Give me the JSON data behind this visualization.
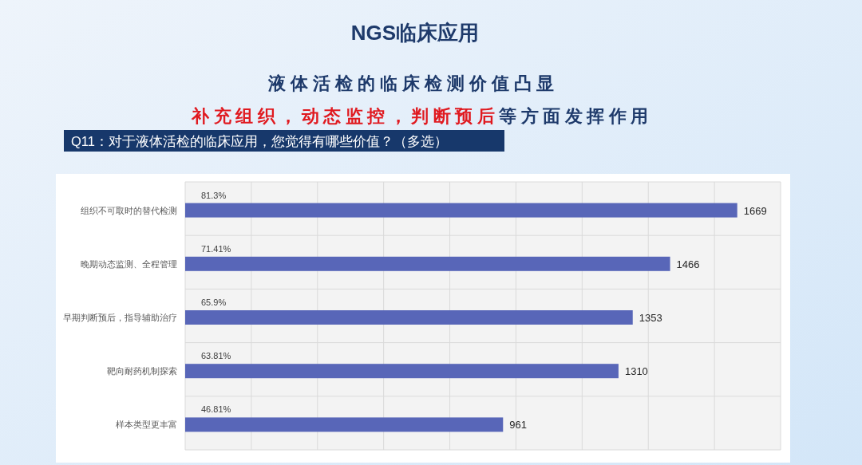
{
  "chart_data": {
    "type": "bar",
    "orientation": "horizontal",
    "title": "NGS临床应用",
    "subtitle": "液体活检的临床检测价值凸显",
    "categories": [
      "组织不可取时的替代检测",
      "晚期动态监测、全程管理",
      "早期判断预后，指导辅助治疗",
      "靶向耐药机制探索",
      "样本类型更丰富"
    ],
    "values": [
      1669,
      1466,
      1353,
      1310,
      961
    ],
    "color": "#5866b8",
    "data_labels": true,
    "xlim": [
      0,
      1800
    ],
    "xticks": [
      {
        "value": 0,
        "label": null
      },
      {
        "value": 200,
        "label": null
      },
      {
        "value": 400,
        "label": null
      },
      {
        "value": 600,
        "label": null
      },
      {
        "value": 800,
        "label": null
      },
      {
        "value": 1000,
        "label": null
      },
      {
        "value": 1200,
        "label": null
      },
      {
        "value": 1400,
        "label": null
      },
      {
        "value": 1600,
        "label": null
      },
      {
        "value": 1800,
        "label": null
      }
    ],
    "tick_labels": "y",
    "grid": true,
    "annotations": [
      "补充组织，动态监控，判断预后",
      "等方面发挥作用",
      "Q11：对于液体活检的临床应用，您觉得有哪些价值？（多选）",
      "81.3%",
      "71.41%",
      "65.9%",
      "63.81%",
      "46.81%"
    ]
  }
}
